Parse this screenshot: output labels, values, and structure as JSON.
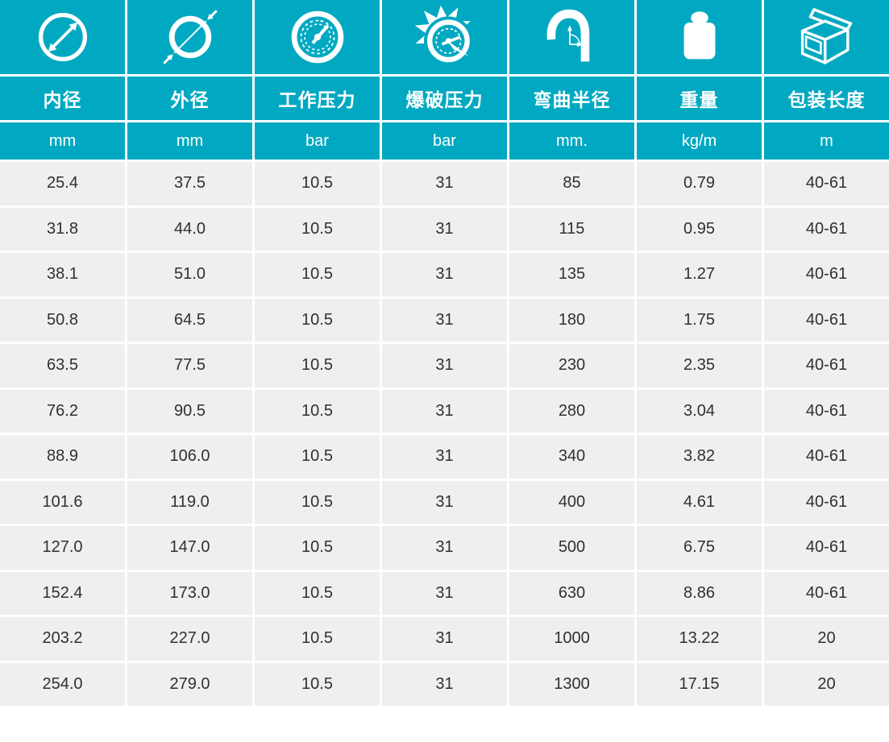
{
  "theme": {
    "teal": "#00a9c1",
    "row_bg": "#efefef",
    "text_dark": "#303030",
    "white": "#ffffff"
  },
  "table": {
    "columns": [
      {
        "icon": "inner-diameter-icon",
        "label": "内径",
        "unit": "mm"
      },
      {
        "icon": "outer-diameter-icon",
        "label": "外径",
        "unit": "mm"
      },
      {
        "icon": "pressure-gauge-icon",
        "label": "工作压力",
        "unit": "bar"
      },
      {
        "icon": "burst-pressure-icon",
        "label": "爆破压力",
        "unit": "bar"
      },
      {
        "icon": "bend-radius-icon",
        "label": "弯曲半径",
        "unit": "mm."
      },
      {
        "icon": "weight-icon",
        "label": "重量",
        "unit": "kg/m"
      },
      {
        "icon": "package-box-icon",
        "label": "包装长度",
        "unit": "m"
      }
    ],
    "rows": [
      [
        "25.4",
        "37.5",
        "10.5",
        "31",
        "85",
        "0.79",
        "40-61"
      ],
      [
        "31.8",
        "44.0",
        "10.5",
        "31",
        "115",
        "0.95",
        "40-61"
      ],
      [
        "38.1",
        "51.0",
        "10.5",
        "31",
        "135",
        "1.27",
        "40-61"
      ],
      [
        "50.8",
        "64.5",
        "10.5",
        "31",
        "180",
        "1.75",
        "40-61"
      ],
      [
        "63.5",
        "77.5",
        "10.5",
        "31",
        "230",
        "2.35",
        "40-61"
      ],
      [
        "76.2",
        "90.5",
        "10.5",
        "31",
        "280",
        "3.04",
        "40-61"
      ],
      [
        "88.9",
        "106.0",
        "10.5",
        "31",
        "340",
        "3.82",
        "40-61"
      ],
      [
        "101.6",
        "119.0",
        "10.5",
        "31",
        "400",
        "4.61",
        "40-61"
      ],
      [
        "127.0",
        "147.0",
        "10.5",
        "31",
        "500",
        "6.75",
        "40-61"
      ],
      [
        "152.4",
        "173.0",
        "10.5",
        "31",
        "630",
        "8.86",
        "40-61"
      ],
      [
        "203.2",
        "227.0",
        "10.5",
        "31",
        "1000",
        "13.22",
        "20"
      ],
      [
        "254.0",
        "279.0",
        "10.5",
        "31",
        "1300",
        "17.15",
        "20"
      ]
    ]
  }
}
